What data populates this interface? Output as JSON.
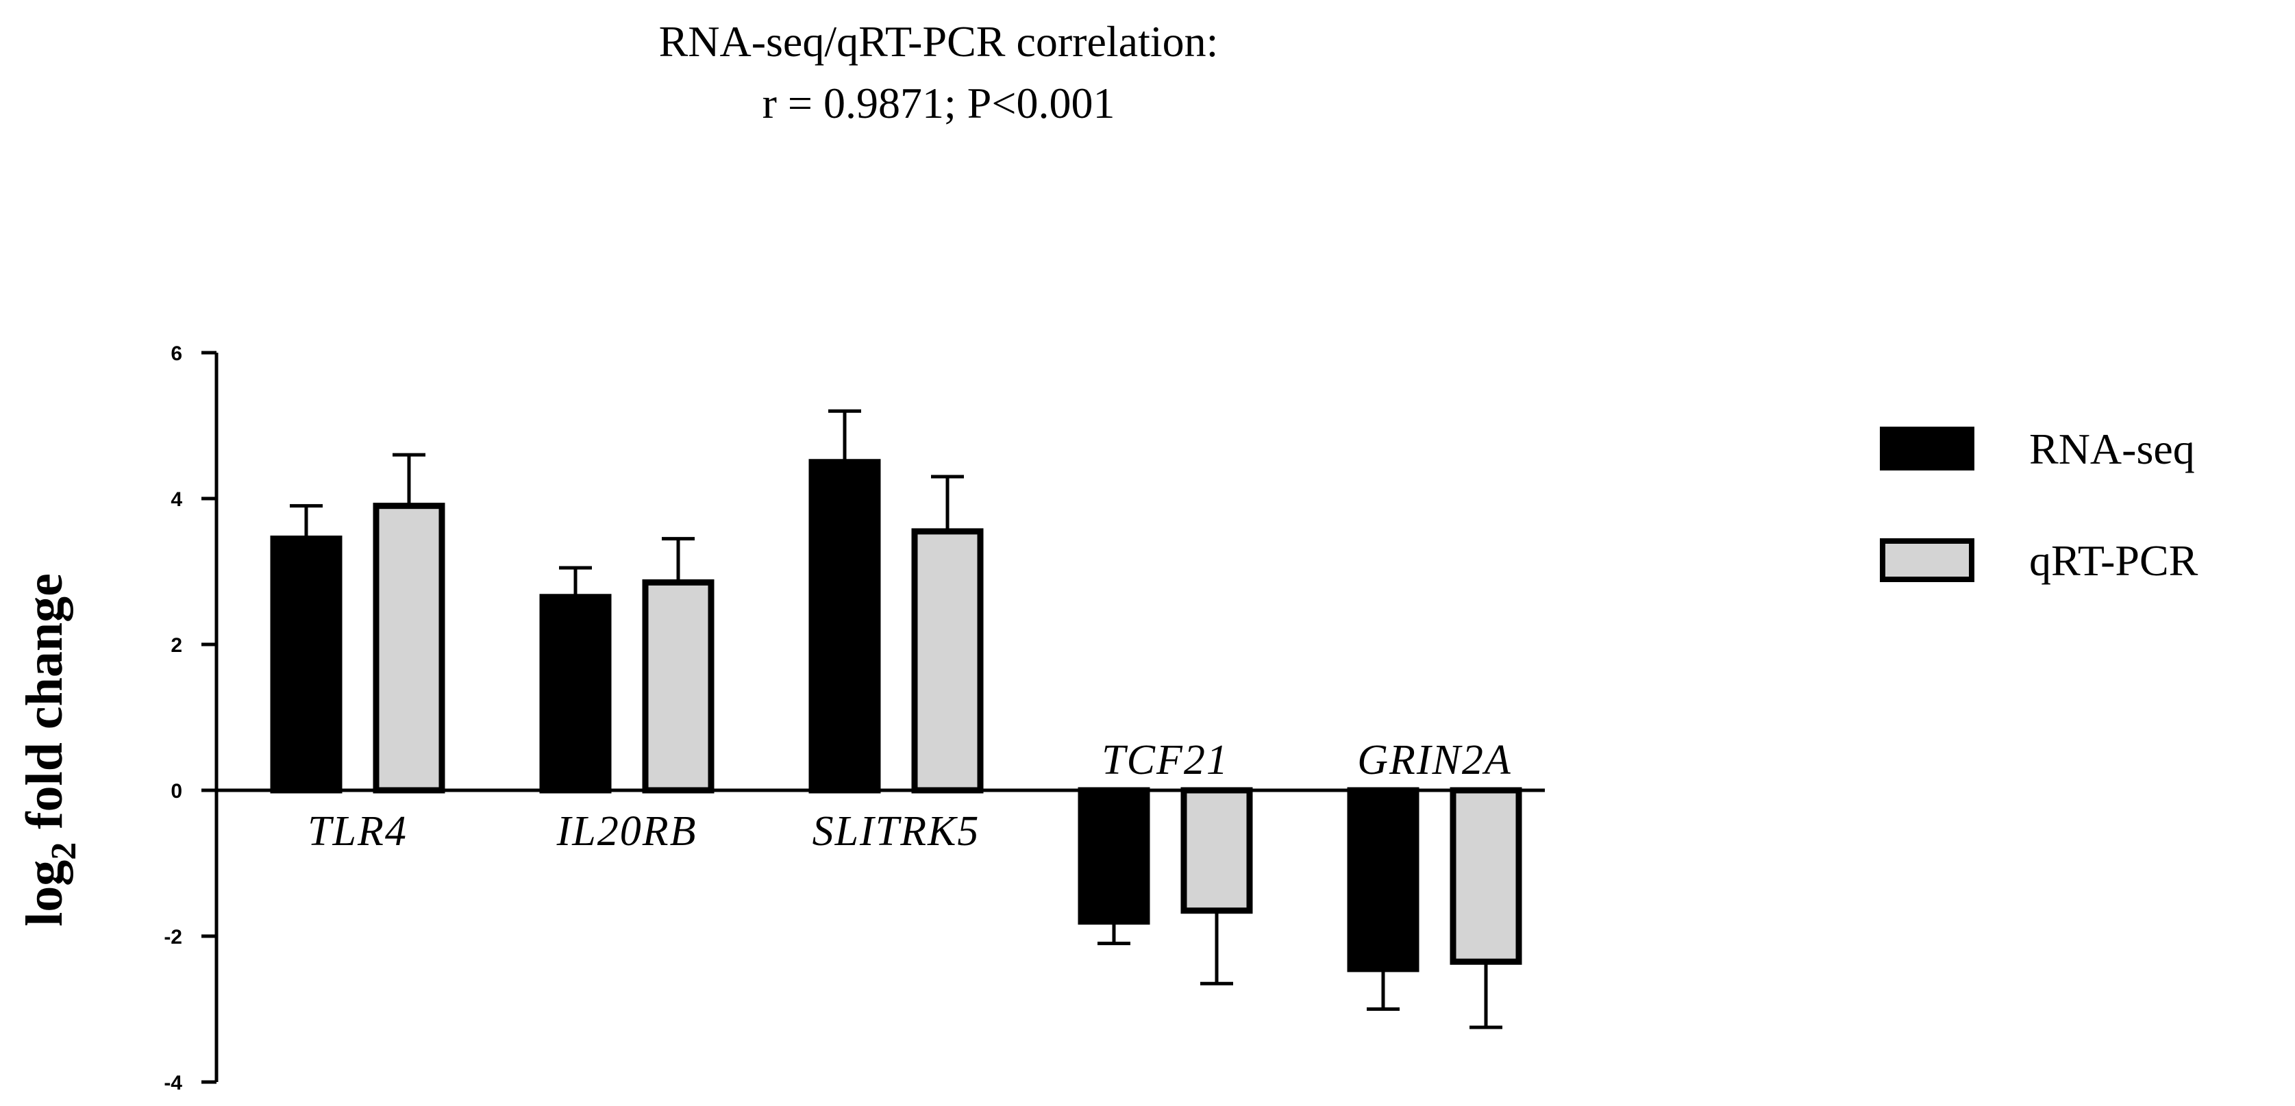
{
  "chart_data": {
    "type": "bar",
    "title": [
      "RNA-seq/qRT-PCR correlation:",
      "r = 0.9871; P<0.001"
    ],
    "ylabel": {
      "main": "log",
      "subscript": "2",
      "rest": " fold change"
    },
    "xlabel": "",
    "ylim": [
      -4,
      6
    ],
    "yticks": [
      6,
      4,
      2,
      0,
      -2,
      -4
    ],
    "categories": [
      "TLR4",
      "IL20RB",
      "SLITRK5",
      "TCF21",
      "GRIN2A"
    ],
    "series": [
      {
        "name": "RNA-seq",
        "color": "#000000",
        "values": [
          3.45,
          2.65,
          4.5,
          -1.8,
          -2.45
        ],
        "errors": [
          0.45,
          0.4,
          0.7,
          0.3,
          0.55
        ]
      },
      {
        "name": "qRT-PCR",
        "color": "#d4d4d4",
        "values": [
          3.9,
          2.85,
          3.55,
          -1.65,
          -2.35
        ],
        "errors": [
          0.7,
          0.6,
          0.75,
          1.0,
          0.9
        ]
      }
    ],
    "legend_position": "right",
    "grid": false
  }
}
